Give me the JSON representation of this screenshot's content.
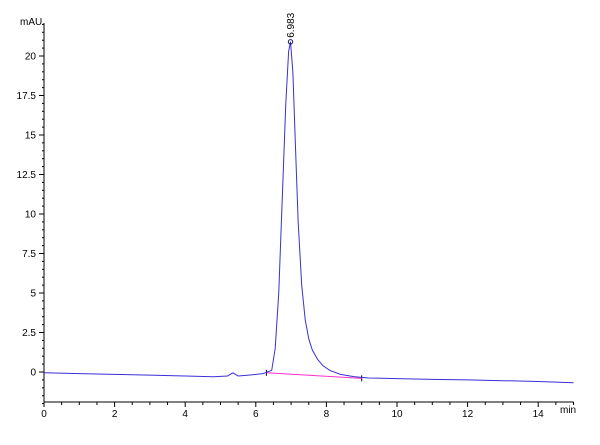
{
  "chart_data": {
    "type": "line",
    "title": "",
    "xlabel": "min",
    "ylabel": "mAU",
    "xlim": [
      0,
      15
    ],
    "ylim": [
      -2.2,
      22.1
    ],
    "x_ticks": [
      0,
      2,
      4,
      6,
      8,
      10,
      12,
      14
    ],
    "y_ticks": [
      0,
      2.5,
      5,
      7.5,
      10,
      12.5,
      15,
      17.5,
      20
    ],
    "grid": false,
    "colors": {
      "signal": "#3b2fd6",
      "baseline": "#ff33cc",
      "axis": "#000000"
    },
    "series": [
      {
        "x": [
          0,
          1,
          2,
          3,
          4,
          4.8,
          5.2,
          5.35,
          5.5,
          5.8,
          6.2,
          6.45,
          6.55,
          6.65,
          6.75,
          6.85,
          6.93,
          6.983,
          7.05,
          7.12,
          7.2,
          7.3,
          7.4,
          7.5,
          7.6,
          7.75,
          7.9,
          8.1,
          8.4,
          8.8,
          9.2,
          10,
          11,
          12,
          13,
          14,
          15
        ],
        "y": [
          -0.05,
          -0.1,
          -0.15,
          -0.2,
          -0.25,
          -0.3,
          -0.25,
          -0.05,
          -0.25,
          -0.2,
          -0.1,
          0.1,
          1.5,
          5,
          11,
          17,
          20.3,
          20.9,
          19,
          14.5,
          9.5,
          5.5,
          3.3,
          2.1,
          1.4,
          0.8,
          0.4,
          0.1,
          -0.15,
          -0.3,
          -0.38,
          -0.42,
          -0.47,
          -0.5,
          -0.55,
          -0.6,
          -0.68
        ]
      }
    ],
    "integration_baseline": {
      "x": [
        6.3,
        9.0
      ],
      "y": [
        -0.05,
        -0.4
      ]
    },
    "peaks": [
      {
        "label": "6.983",
        "x": 6.983,
        "y": 20.9
      }
    ]
  }
}
